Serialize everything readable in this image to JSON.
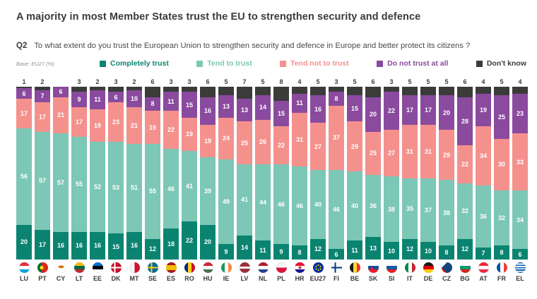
{
  "header": {
    "title": "A majority in most Member States trust the EU to strengthen security and defence"
  },
  "question": {
    "label": "Q2",
    "text": "To what extent do you trust the European Union to strengthen security and defence in Europe and better protect its citizens ?"
  },
  "base_note": "Base: EU27 (%)",
  "legend": [
    {
      "label": "Completely trust",
      "color": "#0a8471"
    },
    {
      "label": "Tend to trust",
      "color": "#7cc7b5"
    },
    {
      "label": "Tend not to trust",
      "color": "#f4918d"
    },
    {
      "label": "Do not trust at all",
      "color": "#8a4a9e"
    },
    {
      "label": "Don't know",
      "color": "#3b3b3a"
    }
  ],
  "chart_data": {
    "type": "bar",
    "stacked": true,
    "unit": "percent",
    "ylim": [
      0,
      100
    ],
    "value_labels": "white labels inside segments; Don't know value printed above each bar",
    "categories": [
      "LU",
      "PT",
      "CY",
      "LT",
      "EE",
      "DK",
      "MT",
      "SE",
      "ES",
      "RO",
      "HU",
      "IE",
      "LV",
      "NL",
      "PL",
      "HR",
      "EU27",
      "FI",
      "BE",
      "SK",
      "SI",
      "IT",
      "DE",
      "CZ",
      "BG",
      "AT",
      "FR",
      "EL"
    ],
    "series": [
      {
        "name": "Completely trust",
        "color": "#0a8471",
        "values": [
          20,
          17,
          16,
          16,
          16,
          15,
          16,
          12,
          18,
          22,
          20,
          9,
          14,
          11,
          9,
          8,
          12,
          6,
          11,
          13,
          10,
          12,
          10,
          8,
          12,
          7,
          8,
          6
        ]
      },
      {
        "name": "Tend to trust",
        "color": "#7cc7b5",
        "values": [
          56,
          57,
          57,
          55,
          52,
          53,
          51,
          55,
          46,
          41,
          39,
          49,
          41,
          44,
          46,
          46,
          40,
          46,
          40,
          36,
          38,
          35,
          37,
          38,
          32,
          36,
          32,
          34
        ]
      },
      {
        "name": "Tend not to trust",
        "color": "#f4918d",
        "values": [
          17,
          17,
          21,
          17,
          19,
          23,
          21,
          19,
          22,
          19,
          19,
          24,
          25,
          26,
          22,
          31,
          27,
          37,
          29,
          25,
          27,
          31,
          31,
          29,
          22,
          34,
          30,
          33
        ]
      },
      {
        "name": "Do not trust at all",
        "color": "#8a4a9e",
        "values": [
          6,
          7,
          6,
          9,
          11,
          6,
          10,
          8,
          11,
          15,
          16,
          13,
          13,
          14,
          15,
          11,
          16,
          8,
          15,
          20,
          22,
          17,
          17,
          20,
          28,
          19,
          25,
          23
        ]
      },
      {
        "name": "Don't know",
        "color": "#3b3b3a",
        "values": [
          1,
          2,
          0,
          3,
          2,
          3,
          2,
          6,
          3,
          3,
          6,
          5,
          7,
          5,
          8,
          4,
          5,
          3,
          5,
          6,
          3,
          5,
          5,
          5,
          6,
          4,
          5,
          4
        ]
      }
    ],
    "flags": {
      "LU": "linear-gradient(180deg,#ed2939 0 33%,#ffffff 33% 66%,#00a1de 66% 100%)",
      "PT": "radial-gradient(circle 2.5px at 40% 50%,#ffe900 0%,#ffe900 99%,transparent 100%),linear-gradient(90deg,#046a38 0 40%,#da291c 40% 100%)",
      "CY": "radial-gradient(ellipse 4px 2px at 50% 42%,#d57800 0%,#d57800 99%,transparent 100%),linear-gradient(#ffffff,#ffffff)",
      "LT": "linear-gradient(180deg,#fdb913 0 33%,#006a44 33% 66%,#c1272d 66% 100%)",
      "EE": "linear-gradient(180deg,#0072ce 0 33%,#000000 33% 66%,#ffffff 66% 100%)",
      "DK": "linear-gradient(90deg,transparent 0 30%,#ffffff 30% 45%,transparent 45% 100%),linear-gradient(180deg,transparent 0 42%,#ffffff 42% 58%,transparent 58% 100%),linear-gradient(#c8102e,#c8102e)",
      "MT": "linear-gradient(90deg,#f4f4f4 0 50%,#cf142b 50% 100%)",
      "SE": "linear-gradient(90deg,transparent 0 30%,#fecc02 30% 45%,transparent 45% 100%),linear-gradient(180deg,transparent 0 42%,#fecc02 42% 58%,transparent 58% 100%),linear-gradient(#006aa7,#006aa7)",
      "ES": "linear-gradient(180deg,#aa151b 0 25%,#f1bf00 25% 75%,#aa151b 75% 100%)",
      "RO": "linear-gradient(90deg,#002b7f 0 33%,#fcd116 33% 66%,#ce1126 66% 100%)",
      "HU": "linear-gradient(180deg,#ce2939 0 33%,#ffffff 33% 66%,#477050 66% 100%)",
      "IE": "linear-gradient(90deg,#169b62 0 33%,#ffffff 33% 66%,#ff883e 66% 100%)",
      "LV": "linear-gradient(180deg,#9e3039 0 40%,#ffffff 40% 60%,#9e3039 60% 100%)",
      "NL": "linear-gradient(180deg,#ae1c28 0 33%,#ffffff 33% 66%,#21468b 66% 100%)",
      "PL": "linear-gradient(180deg,#f4f4f4 0 50%,#dc143c 50% 100%)",
      "HR": "radial-gradient(circle 2px at 50% 50%,#c8394b 0%,#c8394b 99%,transparent 100%),linear-gradient(180deg,#e8112d 0 33%,#ffffff 33% 66%,#171796 66% 100%)",
      "EU27": "radial-gradient(circle 1px at 50% 26%,#ffcc00 0%,#ffcc00 99%,transparent 100%),radial-gradient(circle 1px at 30% 40%,#ffcc00 0%,#ffcc00 99%,transparent 100%),radial-gradient(circle 1px at 70% 40%,#ffcc00 0%,#ffcc00 99%,transparent 100%),radial-gradient(circle 1px at 30% 62%,#ffcc00 0%,#ffcc00 99%,transparent 100%),radial-gradient(circle 1px at 70% 62%,#ffcc00 0%,#ffcc00 99%,transparent 100%),radial-gradient(circle 1px at 50% 74%,#ffcc00 0%,#ffcc00 99%,transparent 100%),linear-gradient(#003399,#003399)",
      "FI": "linear-gradient(90deg,transparent 0 30%,#003580 30% 45%,transparent 45% 100%),linear-gradient(180deg,transparent 0 42%,#003580 42% 58%,transparent 58% 100%),linear-gradient(#ffffff,#ffffff)",
      "BE": "linear-gradient(90deg,#1a1a1a 0 33%,#fdda25 33% 66%,#ef3340 66% 100%)",
      "SK": "radial-gradient(circle 2px at 35% 58%,#ee1c25 0%,#ee1c25 99%,transparent 100%),linear-gradient(180deg,#ffffff 0 33%,#0b4ea2 33% 66%,#ee1c25 66% 100%)",
      "SI": "linear-gradient(180deg,#ffffff 0 33%,#005da4 33% 66%,#ed1c24 66% 100%)",
      "IT": "linear-gradient(90deg,#008c45 0 33%,#ffffff 33% 66%,#cd212a 66% 100%)",
      "DE": "linear-gradient(180deg,#1a1a1a 0 33%,#dd0000 33% 66%,#ffce00 66% 100%)",
      "CZ": "conic-gradient(from 45deg at 0% 50%,#11457e 0deg 90deg,transparent 90deg 360deg),linear-gradient(180deg,#ffffff 0 50%,#d7141a 50% 100%)",
      "BG": "linear-gradient(180deg,#ffffff 0 33%,#00966e 33% 66%,#d62612 66% 100%)",
      "AT": "linear-gradient(180deg,#ed2939 0 33%,#ffffff 33% 66%,#ed2939 66% 100%)",
      "FR": "linear-gradient(90deg,#0055a4 0 33%,#ffffff 33% 66%,#ef4135 66% 100%)",
      "EL": "repeating-linear-gradient(180deg,#0d5eaf 0 1.7px,#ffffff 1.7px 3.4px)"
    }
  }
}
